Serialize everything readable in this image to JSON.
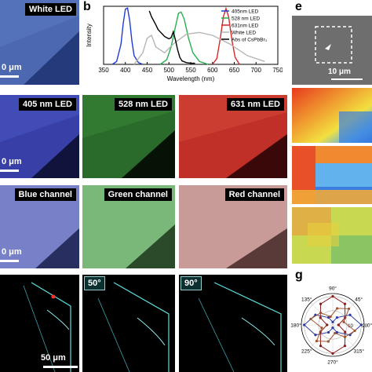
{
  "panel_letters": {
    "b": "b",
    "e": "e",
    "g": "g"
  },
  "row1": {
    "label": "White LED",
    "scale": "0 μm"
  },
  "row2": {
    "labels": [
      "405 nm LED",
      "528 nm LED",
      "631 nm LED"
    ],
    "scale": "0 μm"
  },
  "row3": {
    "labels": [
      "Blue channel",
      "Green channel",
      "Red channel"
    ],
    "scale": "0 μm"
  },
  "row4": {
    "angles": [
      "50°",
      "90°"
    ],
    "scale": "50 μm"
  },
  "panel_e": {
    "scale": "10 μm"
  },
  "colors": {
    "blue_led": "#1f3dd6",
    "green_led": "#22b14c",
    "red_led": "#d62728",
    "white_led": "#b5b5b5",
    "abs": "#000000",
    "cyan_fiber": "#5fe0e0"
  },
  "chart_data": [
    {
      "type": "line",
      "xlabel": "Wavelength (nm)",
      "ylabel": "Intensity",
      "xlim": [
        350,
        750
      ],
      "xticks": [
        "350",
        "400",
        "450",
        "500",
        "550",
        "600",
        "650",
        "700",
        "750"
      ],
      "legend_position": "top-right",
      "series": [
        {
          "name": "405nm LED",
          "color": "#1f3dd6",
          "x": [
            370,
            380,
            390,
            395,
            400,
            405,
            410,
            415,
            420,
            430,
            440
          ],
          "y": [
            0.0,
            0.05,
            0.35,
            0.7,
            0.95,
            0.97,
            0.75,
            0.4,
            0.15,
            0.03,
            0.0
          ]
        },
        {
          "name": "528 nm LED",
          "color": "#22b14c",
          "x": [
            480,
            495,
            505,
            515,
            522,
            528,
            535,
            545,
            555,
            570,
            590
          ],
          "y": [
            0.0,
            0.08,
            0.3,
            0.65,
            0.88,
            0.9,
            0.78,
            0.45,
            0.2,
            0.05,
            0.0
          ]
        },
        {
          "name": "631nm LED",
          "color": "#d62728",
          "x": [
            600,
            610,
            618,
            625,
            631,
            637,
            645,
            652,
            662
          ],
          "y": [
            0.0,
            0.1,
            0.45,
            0.82,
            0.96,
            0.82,
            0.4,
            0.12,
            0.0
          ]
        },
        {
          "name": "White LED",
          "color": "#b5b5b5",
          "x": [
            420,
            440,
            450,
            460,
            470,
            490,
            510,
            540,
            570,
            600,
            640,
            680,
            720
          ],
          "y": [
            0.0,
            0.2,
            0.45,
            0.5,
            0.3,
            0.2,
            0.35,
            0.52,
            0.55,
            0.5,
            0.35,
            0.15,
            0.05
          ]
        },
        {
          "name": "Abs of CsPbBr₃",
          "color": "#000000",
          "x": [
            455,
            460,
            465,
            470,
            475,
            480,
            485,
            490,
            495,
            500,
            505,
            510,
            515,
            520,
            525,
            530,
            540,
            550,
            560
          ],
          "y": [
            0.92,
            0.82,
            0.75,
            0.68,
            0.6,
            0.56,
            0.52,
            0.48,
            0.46,
            0.44,
            0.46,
            0.56,
            0.42,
            0.25,
            0.12,
            0.06,
            0.03,
            0.02,
            0.02
          ]
        }
      ]
    },
    {
      "type": "scatter",
      "subtype": "polar",
      "angle_ticks": [
        "90°",
        "45°",
        "0°",
        "315°",
        "270°",
        "225°",
        "180°",
        "135°"
      ],
      "radial_ticks": [
        "10",
        "20"
      ],
      "series": [
        {
          "color": "#2b3a9c",
          "theta": [
            0,
            30,
            60,
            90,
            120,
            150,
            180,
            210,
            240,
            270,
            300,
            330
          ],
          "r": [
            20,
            14,
            6,
            2,
            6,
            14,
            20,
            14,
            6,
            2,
            6,
            14
          ]
        },
        {
          "color": "#8b1a1a",
          "theta": [
            0,
            30,
            60,
            90,
            120,
            150,
            180,
            210,
            240,
            270,
            300,
            330
          ],
          "r": [
            4,
            10,
            17,
            20,
            17,
            10,
            4,
            10,
            17,
            20,
            17,
            10
          ]
        },
        {
          "color": "#a0522d",
          "theta": [
            15,
            45,
            75,
            105,
            135,
            165,
            195,
            225,
            255,
            285,
            315,
            345
          ],
          "r": [
            8,
            16,
            12,
            6,
            12,
            16,
            8,
            16,
            12,
            6,
            12,
            16
          ]
        }
      ]
    }
  ]
}
